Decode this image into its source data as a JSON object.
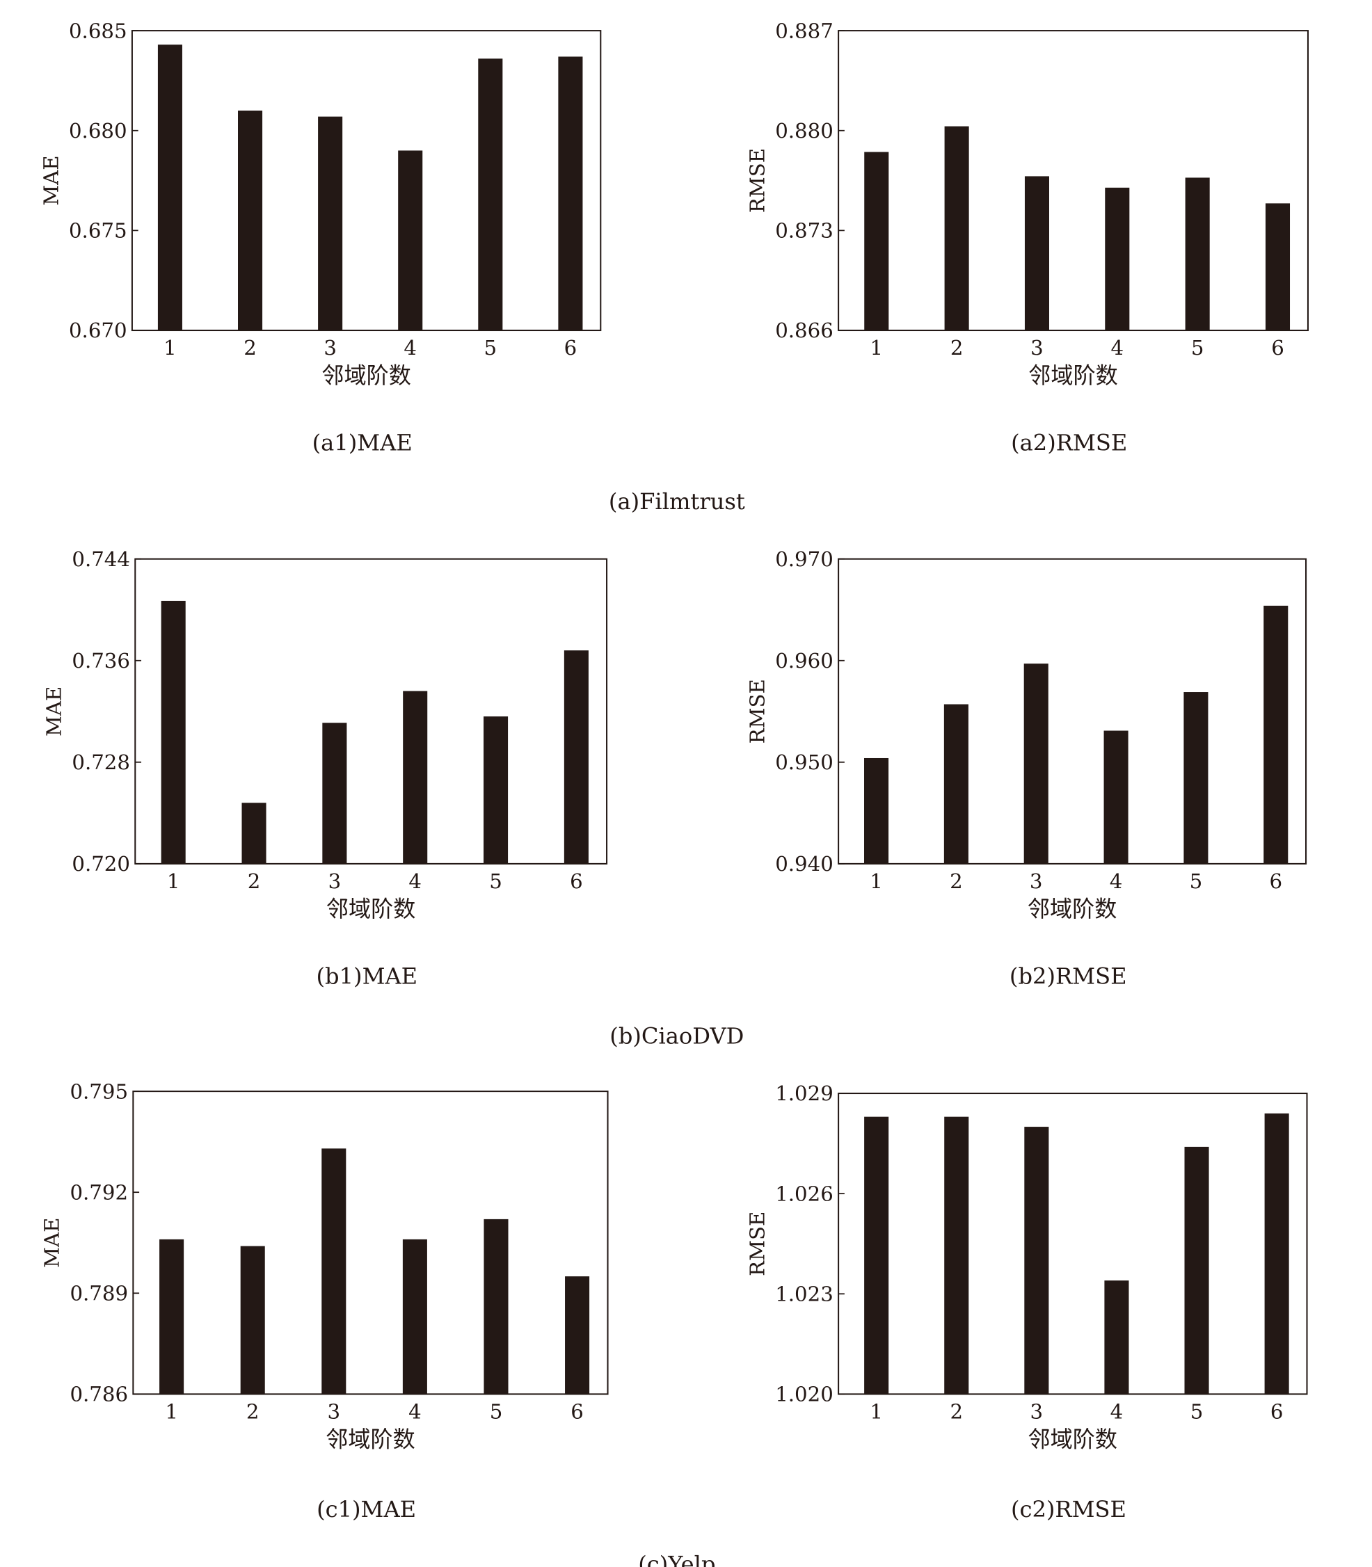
{
  "bar_color": "#231815",
  "chart_data": [
    {
      "id": "a1",
      "type": "bar",
      "caption": "(a1)MAE",
      "group": "a",
      "categories": [
        "1",
        "2",
        "3",
        "4",
        "5",
        "6"
      ],
      "values": [
        0.6843,
        0.681,
        0.6807,
        0.679,
        0.6836,
        0.6837
      ],
      "xlabel": "邻域阶数",
      "ylabel": "MAE",
      "ylim": [
        0.67,
        0.685
      ],
      "yticks": [
        "0.670",
        "0.675",
        "0.680",
        "0.685"
      ]
    },
    {
      "id": "a2",
      "type": "bar",
      "caption": "(a2)RMSE",
      "group": "a",
      "categories": [
        "1",
        "2",
        "3",
        "4",
        "5",
        "6"
      ],
      "values": [
        0.8785,
        0.8803,
        0.8768,
        0.876,
        0.8767,
        0.8749
      ],
      "xlabel": "邻域阶数",
      "ylabel": "RMSE",
      "ylim": [
        0.866,
        0.887
      ],
      "yticks": [
        "0.866",
        "0.873",
        "0.880",
        "0.887"
      ]
    },
    {
      "id": "b1",
      "type": "bar",
      "caption": "(b1)MAE",
      "group": "b",
      "categories": [
        "1",
        "2",
        "3",
        "4",
        "5",
        "6"
      ],
      "values": [
        0.7407,
        0.7248,
        0.7311,
        0.7336,
        0.7316,
        0.7368
      ],
      "xlabel": "邻域阶数",
      "ylabel": "MAE",
      "ylim": [
        0.72,
        0.744
      ],
      "yticks": [
        "0.720",
        "0.728",
        "0.736",
        "0.744"
      ]
    },
    {
      "id": "b2",
      "type": "bar",
      "caption": "(b2)RMSE",
      "group": "b",
      "categories": [
        "1",
        "2",
        "3",
        "4",
        "5",
        "6"
      ],
      "values": [
        0.9504,
        0.9557,
        0.9597,
        0.9531,
        0.9569,
        0.9654
      ],
      "xlabel": "邻域阶数",
      "ylabel": "RMSE",
      "ylim": [
        0.94,
        0.97
      ],
      "yticks": [
        "0.940",
        "0.950",
        "0.960",
        "0.970"
      ]
    },
    {
      "id": "c1",
      "type": "bar",
      "caption": "(c1)MAE",
      "group": "c",
      "categories": [
        "1",
        "2",
        "3",
        "4",
        "5",
        "6"
      ],
      "values": [
        0.7906,
        0.7904,
        0.7933,
        0.7906,
        0.7912,
        0.7895
      ],
      "xlabel": "邻域阶数",
      "ylabel": "MAE",
      "ylim": [
        0.786,
        0.795
      ],
      "yticks": [
        "0.786",
        "0.789",
        "0.792",
        "0.795"
      ]
    },
    {
      "id": "c2",
      "type": "bar",
      "caption": "(c2)RMSE",
      "group": "c",
      "categories": [
        "1",
        "2",
        "3",
        "4",
        "5",
        "6"
      ],
      "values": [
        1.0283,
        1.0283,
        1.028,
        1.0234,
        1.0274,
        1.0284
      ],
      "xlabel": "邻域阶数",
      "ylabel": "RMSE",
      "ylim": [
        1.02,
        1.029
      ],
      "yticks": [
        "1.020",
        "1.023",
        "1.026",
        "1.029"
      ]
    }
  ],
  "groups": {
    "a": "(a)Filmtrust",
    "b": "(b)CiaoDVD",
    "c": "(c)Yelp"
  }
}
